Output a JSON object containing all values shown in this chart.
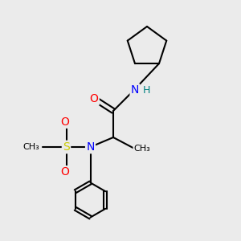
{
  "background_color": "#ebebeb",
  "bond_color": "#000000",
  "bond_lw": 1.5,
  "atom_colors": {
    "N": "#0000ff",
    "O": "#ff0000",
    "S": "#cccc00",
    "H": "#008080",
    "C": "#000000"
  },
  "font_size": 10,
  "font_size_small": 9
}
